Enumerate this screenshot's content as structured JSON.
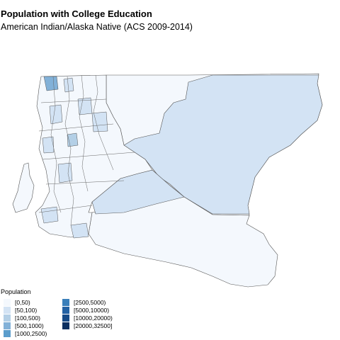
{
  "title": "Population with College Education",
  "subtitle": "American Indian/Alaska Native (ACS 2009-2014)",
  "legend": {
    "title": "Population",
    "items": [
      {
        "label": "[0,50)",
        "color": "#f4f8fd"
      },
      {
        "label": "[50,100)",
        "color": "#d3e3f4"
      },
      {
        "label": "[100,500)",
        "color": "#b3cfe6"
      },
      {
        "label": "[500,1000)",
        "color": "#82b1d8"
      },
      {
        "label": "[1000,2500)",
        "color": "#5b9dcc"
      },
      {
        "label": "[2500,5000)",
        "color": "#3a7fba"
      },
      {
        "label": "[5000,10000)",
        "color": "#2462a4"
      },
      {
        "label": "[10000,20000)",
        "color": "#174b88"
      },
      {
        "label": "[20000,32500]",
        "color": "#0b2f60"
      }
    ]
  }
}
